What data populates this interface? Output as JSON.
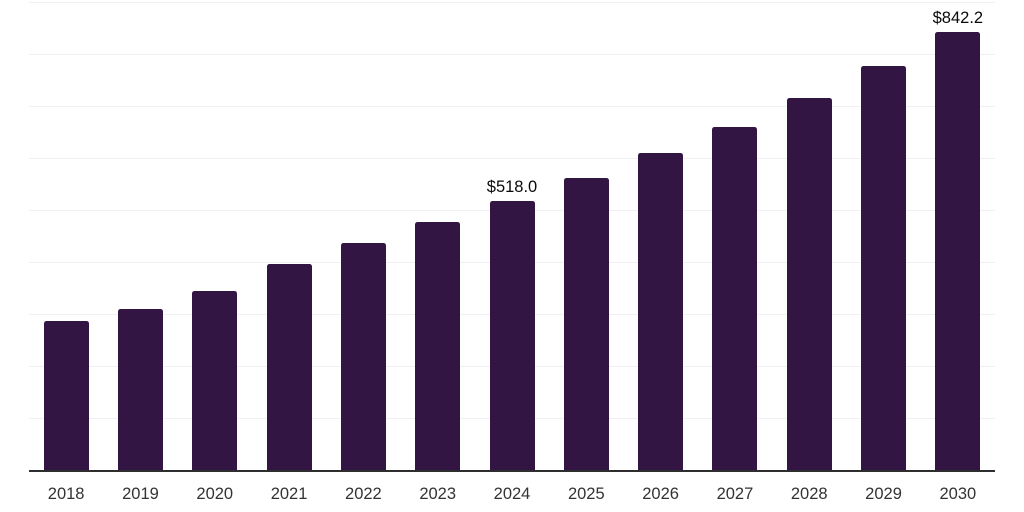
{
  "chart_data": {
    "type": "bar",
    "title": "",
    "xlabel": "",
    "ylabel": "",
    "categories": [
      "2018",
      "2019",
      "2020",
      "2021",
      "2022",
      "2023",
      "2024",
      "2025",
      "2026",
      "2027",
      "2028",
      "2029",
      "2030"
    ],
    "values": [
      287.4,
      308.9,
      344.0,
      395.8,
      436.1,
      476.3,
      518.0,
      561.8,
      609.2,
      660.3,
      715.6,
      776.8,
      842.2
    ],
    "annotations": [
      {
        "category": "2024",
        "text": "$518.0"
      },
      {
        "category": "2030",
        "text": "$842.2"
      }
    ],
    "ylim": [
      0,
      900
    ],
    "grid_step": 100,
    "grid": true,
    "yticks_labeled": false,
    "legend": "none",
    "colors": {
      "bar": "#321543",
      "grid": "#f0f0f2",
      "axis_line": "#2e2e2e",
      "tick_label": "#333333",
      "value_label": "#0a0a0a",
      "background": "#ffffff"
    }
  }
}
